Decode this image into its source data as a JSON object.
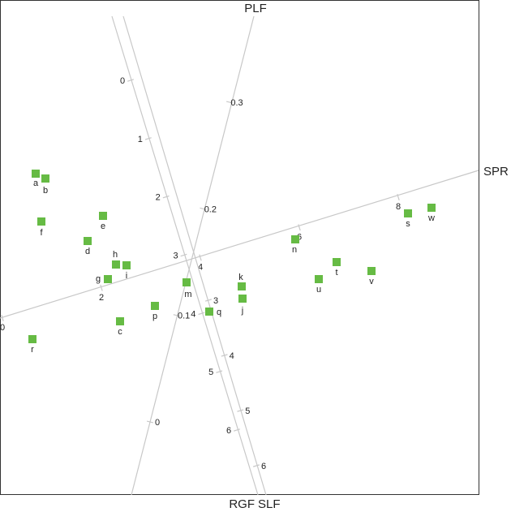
{
  "chart_data": {
    "type": "scatter",
    "subtype": "biplot",
    "colors": {
      "point": "#66bb44",
      "axis": "#c8c8c8",
      "frame": "#333333",
      "text": "#222222"
    },
    "axes": [
      {
        "name": "PLF",
        "ticks": [
          {
            "label": "0",
            "t": 0.0
          },
          {
            "label": "0.1",
            "t": 0.3333
          },
          {
            "label": "0.2",
            "t": 0.6667
          },
          {
            "label": "0.3",
            "t": 1.0
          }
        ]
      },
      {
        "name": "SPR",
        "ticks": [
          {
            "label": "0",
            "t": 0.0
          },
          {
            "label": "2",
            "t": 0.25
          },
          {
            "label": "4",
            "t": 0.5
          },
          {
            "label": "6",
            "t": 0.75
          },
          {
            "label": "8",
            "t": 1.0
          }
        ]
      },
      {
        "name": "RGF",
        "ticks": [
          {
            "label": "0",
            "t": 0.0
          },
          {
            "label": "1",
            "t": 0.1667
          },
          {
            "label": "2",
            "t": 0.3333
          },
          {
            "label": "3",
            "t": 0.5
          },
          {
            "label": "4",
            "t": 0.6667
          },
          {
            "label": "5",
            "t": 0.8333
          },
          {
            "label": "6",
            "t": 1.0
          }
        ]
      },
      {
        "name": "SLF",
        "ticks": [
          {
            "label": "3",
            "t": 0.0
          },
          {
            "label": "4",
            "t": 0.3333
          },
          {
            "label": "5",
            "t": 0.6667
          },
          {
            "label": "6",
            "t": 1.0
          }
        ]
      }
    ],
    "points": [
      {
        "label": "a"
      },
      {
        "label": "b"
      },
      {
        "label": "c"
      },
      {
        "label": "d"
      },
      {
        "label": "e"
      },
      {
        "label": "f"
      },
      {
        "label": "g"
      },
      {
        "label": "h"
      },
      {
        "label": "i"
      },
      {
        "label": "j"
      },
      {
        "label": "k"
      },
      {
        "label": "m"
      },
      {
        "label": "n"
      },
      {
        "label": "p"
      },
      {
        "label": "q"
      },
      {
        "label": "r"
      },
      {
        "label": "s"
      },
      {
        "label": "t"
      },
      {
        "label": "u"
      },
      {
        "label": "v"
      },
      {
        "label": "w"
      }
    ]
  }
}
